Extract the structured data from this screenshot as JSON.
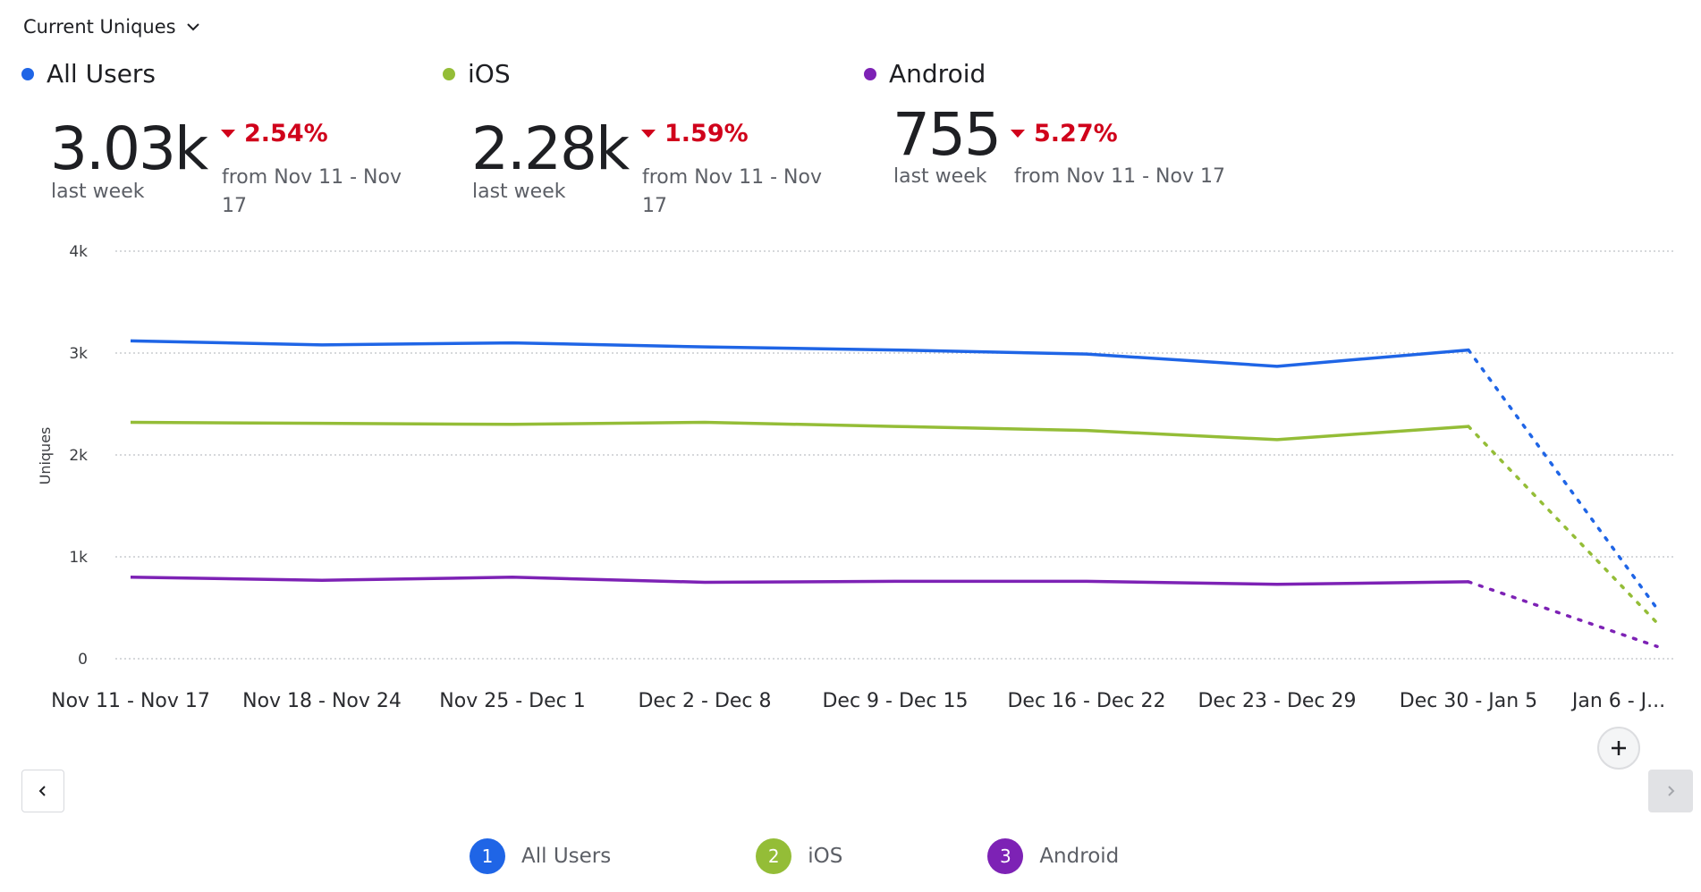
{
  "header": {
    "metric_selector": "Current Uniques",
    "metric_selector_icon": "chevron-down-icon"
  },
  "summary": [
    {
      "name": "All Users",
      "color": "#1f65e6",
      "value": "3.03k",
      "value_caption": "last week",
      "delta": "2.54%",
      "delta_direction": "down",
      "from_line1": "from Nov 11 - Nov",
      "from_line2": "17"
    },
    {
      "name": "iOS",
      "color": "#94bd37",
      "value": "2.28k",
      "value_caption": "last week",
      "delta": "1.59%",
      "delta_direction": "down",
      "from_line1": "from Nov 11 - Nov",
      "from_line2": "17"
    },
    {
      "name": "Android",
      "color": "#7d22b5",
      "value": "755",
      "value_caption": "last week",
      "delta": "5.27%",
      "delta_direction": "down",
      "from_line1": "from Nov 11 - Nov 17",
      "from_line2": ""
    }
  ],
  "navigation": {
    "prev_icon": "chevron-left-icon",
    "next_icon": "chevron-right-icon",
    "zoom_icon": "plus-icon"
  },
  "legend": [
    {
      "index": "1",
      "label": "All Users",
      "color": "#1f65e6"
    },
    {
      "index": "2",
      "label": "iOS",
      "color": "#94bd37"
    },
    {
      "index": "3",
      "label": "Android",
      "color": "#7d22b5"
    }
  ],
  "chart_data": {
    "type": "line",
    "title": "Current Uniques",
    "xlabel": "",
    "ylabel": "Uniques",
    "ylim": [
      0,
      4000
    ],
    "yticks": [
      0,
      1000,
      2000,
      3000,
      4000
    ],
    "ytick_labels": [
      "0",
      "1k",
      "2k",
      "3k",
      "4k"
    ],
    "grid": true,
    "legend_position": "bottom-center",
    "categories": [
      "Nov 11 - Nov 17",
      "Nov 18 - Nov 24",
      "Nov 25 - Dec 1",
      "Dec 2 - Dec 8",
      "Dec 9 - Dec 15",
      "Dec 16 - Dec 22",
      "Dec 23 - Dec 29",
      "Dec 30 - Jan 5",
      "Jan 6 - J..."
    ],
    "incomplete_from_index": 7,
    "series": [
      {
        "name": "All Users",
        "color": "#1f65e6",
        "values": [
          3120,
          3080,
          3100,
          3060,
          3030,
          2990,
          2870,
          3030,
          490
        ]
      },
      {
        "name": "iOS",
        "color": "#94bd37",
        "values": [
          2320,
          2310,
          2300,
          2320,
          2280,
          2240,
          2150,
          2280,
          350
        ]
      },
      {
        "name": "Android",
        "color": "#7d22b5",
        "values": [
          800,
          770,
          800,
          750,
          760,
          760,
          730,
          755,
          120
        ]
      }
    ]
  }
}
